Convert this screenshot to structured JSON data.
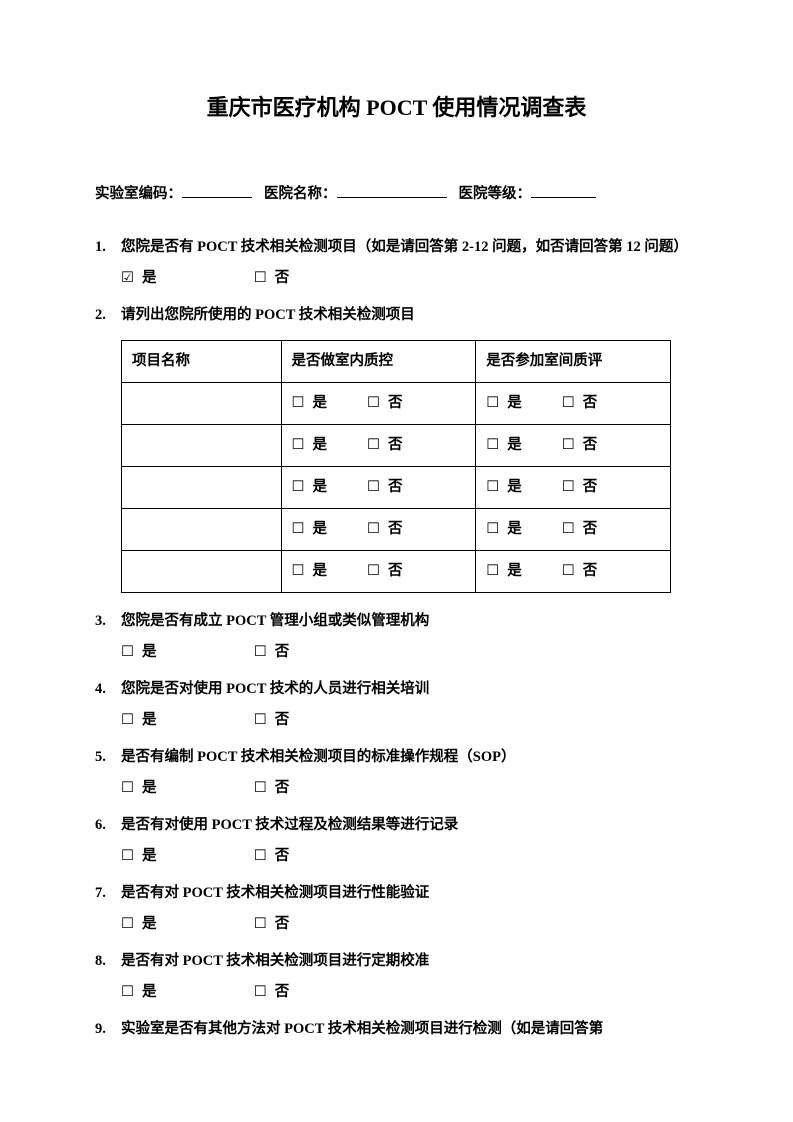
{
  "title": "重庆市医疗机构 POCT 使用情况调查表",
  "header": {
    "lab_code_label": "实验室编码：",
    "hospital_name_label": "医院名称：",
    "hospital_grade_label": "医院等级："
  },
  "checkbox": {
    "empty": "☐",
    "checked": "☑"
  },
  "yesno": {
    "yes": "是",
    "no": "否"
  },
  "q1": {
    "text": "您院是否有 POCT 技术相关检测项目（如是请回答第 2-12 问题，如否请回答第 12 问题）",
    "yes_checked": true,
    "no_checked": false
  },
  "q2": {
    "text": "请列出您院所使用的 POCT 技术相关检测项目",
    "table": {
      "headers": {
        "c1": "项目名称",
        "c2": "是否做室内质控",
        "c3": "是否参加室间质评"
      },
      "rows": 5
    }
  },
  "q3": {
    "text": "您院是否有成立 POCT 管理小组或类似管理机构"
  },
  "q4": {
    "text": "您院是否对使用 POCT 技术的人员进行相关培训"
  },
  "q5": {
    "text": "是否有编制 POCT 技术相关检测项目的标准操作规程（SOP）"
  },
  "q6": {
    "text": "是否有对使用 POCT 技术过程及检测结果等进行记录"
  },
  "q7": {
    "text": "是否有对 POCT 技术相关检测项目进行性能验证"
  },
  "q8": {
    "text": "是否有对 POCT 技术相关检测项目进行定期校准"
  },
  "q9": {
    "text": "实验室是否有其他方法对 POCT 技术相关检测项目进行检测（如是请回答第"
  }
}
